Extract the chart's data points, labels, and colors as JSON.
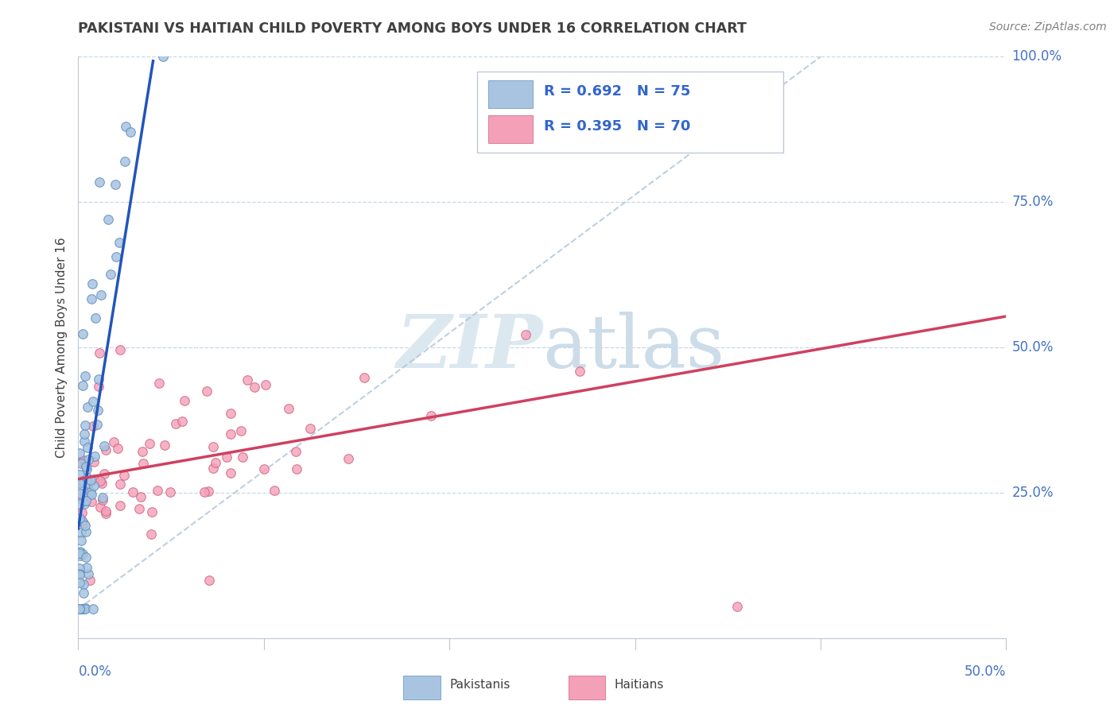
{
  "title": "PAKISTANI VS HAITIAN CHILD POVERTY AMONG BOYS UNDER 16 CORRELATION CHART",
  "source": "Source: ZipAtlas.com",
  "ylabel": "Child Poverty Among Boys Under 16",
  "xlim": [
    0,
    0.5
  ],
  "ylim": [
    0,
    1.0
  ],
  "ytick_values": [
    0.25,
    0.5,
    0.75,
    1.0
  ],
  "ytick_labels": [
    "25.0%",
    "50.0%",
    "75.0%",
    "100.0%"
  ],
  "xtick_labels": [
    "0.0%",
    "50.0%"
  ],
  "pakistani_R": 0.692,
  "pakistani_N": 75,
  "haitian_R": 0.395,
  "haitian_N": 70,
  "pakistani_dot_color": "#a8c4e0",
  "pakistani_edge_color": "#6090c0",
  "haitian_dot_color": "#f4a0b8",
  "haitian_edge_color": "#d06080",
  "pakistani_line_color": "#2255bb",
  "haitian_line_color": "#d04060",
  "dashed_line_color": "#b0c4d8",
  "watermark_zip_color": "#d0dce8",
  "watermark_atlas_color": "#c4d4e4",
  "background_color": "#ffffff",
  "grid_color": "#c8d8e8",
  "axis_tick_color": "#4472c4",
  "ylabel_color": "#404040",
  "title_color": "#404040",
  "source_color": "#808080",
  "legend_text_color": "#3366cc",
  "legend_bg_color": "#ffffff",
  "legend_border_color": "#c0c8d8"
}
